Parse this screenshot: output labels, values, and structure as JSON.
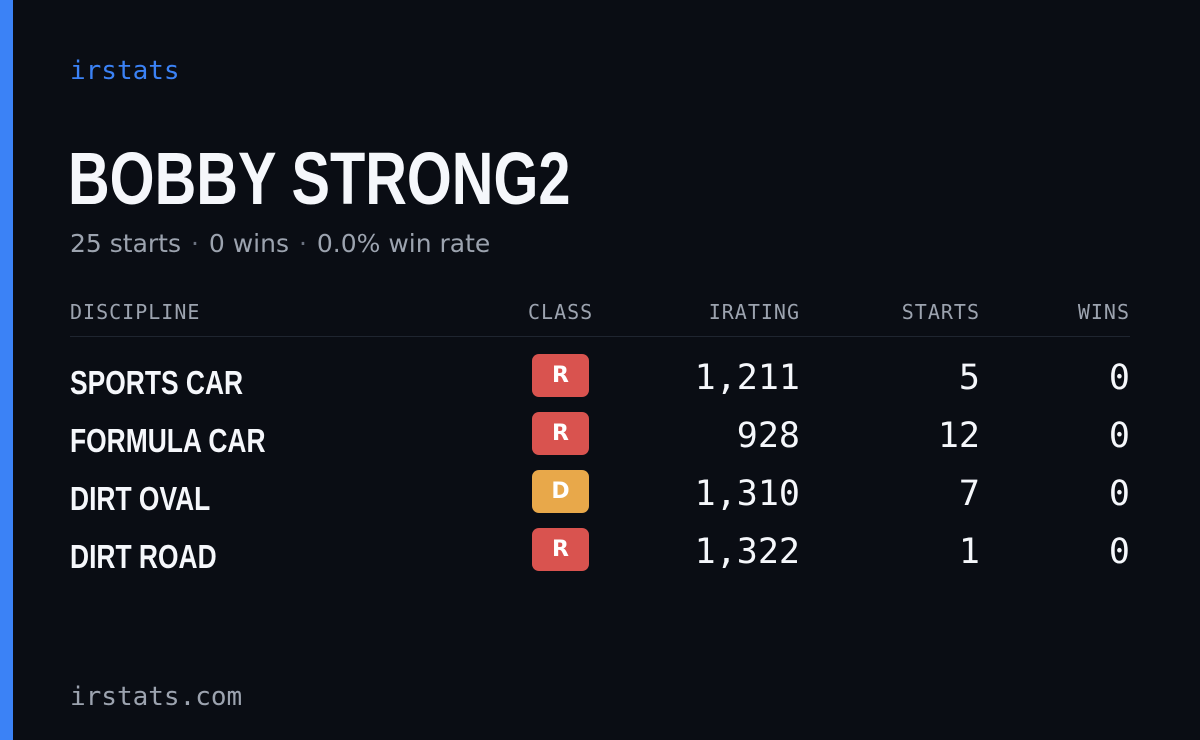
{
  "brand": "irstats",
  "driver": {
    "name": "BOBBY STRONG2",
    "starts_text": "25 starts",
    "wins_text": "0 wins",
    "win_rate_text": "0.0% win rate",
    "separator": "·"
  },
  "table": {
    "headers": {
      "discipline": "DISCIPLINE",
      "class": "CLASS",
      "irating": "IRATING",
      "starts": "STARTS",
      "wins": "WINS"
    },
    "rows": [
      {
        "discipline": "SPORTS CAR",
        "class": "R",
        "class_color": "#d9534f",
        "irating": "1,211",
        "starts": "5",
        "wins": "0"
      },
      {
        "discipline": "FORMULA CAR",
        "class": "R",
        "class_color": "#d9534f",
        "irating": "928",
        "starts": "12",
        "wins": "0"
      },
      {
        "discipline": "DIRT OVAL",
        "class": "D",
        "class_color": "#e8a84a",
        "irating": "1,310",
        "starts": "7",
        "wins": "0"
      },
      {
        "discipline": "DIRT ROAD",
        "class": "R",
        "class_color": "#d9534f",
        "irating": "1,322",
        "starts": "1",
        "wins": "0"
      }
    ]
  },
  "footer": {
    "url": "irstats.com"
  },
  "colors": {
    "background": "#0a0d14",
    "accent": "#3b82f6",
    "text": "#f5f7fb",
    "muted": "#9ca3af"
  }
}
